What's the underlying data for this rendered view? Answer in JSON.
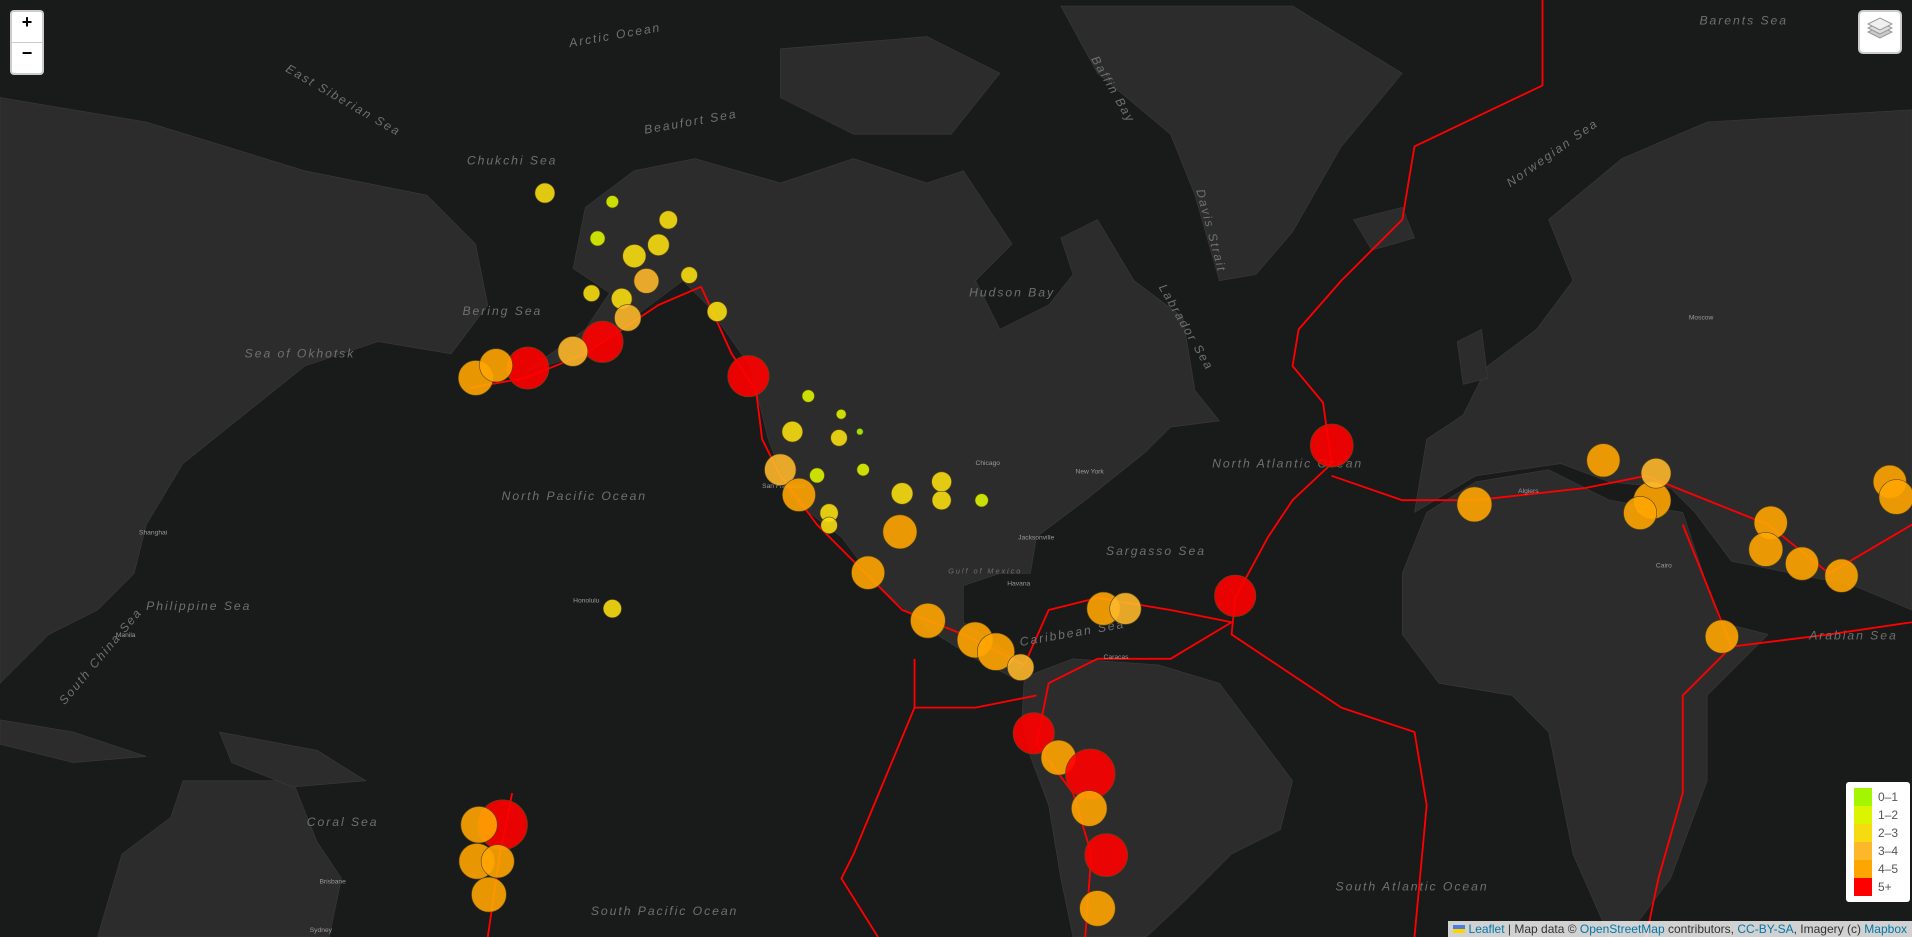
{
  "map_labels": [
    "Arctic Ocean",
    "Chukchi Sea",
    "Beaufort Sea",
    "East Siberian Sea",
    "Bering Sea",
    "Sea of Okhotsk",
    "North Pacific Ocean",
    "Philippine Sea",
    "South China Sea",
    "Coral Sea",
    "South Pacific Ocean",
    "Hudson Bay",
    "Baffin Bay",
    "Davis Strait",
    "Labrador Sea",
    "North Atlantic Ocean",
    "Sargasso Sea",
    "Caribbean Sea",
    "Gulf of Mexico",
    "South Atlantic Ocean",
    "Norwegian Sea",
    "Barents Sea",
    "Arabian Sea"
  ],
  "city_labels": [
    "Honolulu",
    "San Francisco",
    "Chicago",
    "New York",
    "Havana",
    "Caracas",
    "Algiers",
    "Cairo",
    "Shanghai",
    "Manila",
    "Brisbane",
    "Sydney",
    "Moscow",
    "Jacksonville"
  ],
  "controls": {
    "zoom_in": "+",
    "zoom_out": "−"
  },
  "legend": [
    {
      "label": "0–1",
      "color": "#a3f600"
    },
    {
      "label": "1–2",
      "color": "#dcf400"
    },
    {
      "label": "2–3",
      "color": "#f7db11"
    },
    {
      "label": "3–4",
      "color": "#fdb72a"
    },
    {
      "label": "4–5",
      "color": "#ffa500"
    },
    {
      "label": "5+",
      "color": "#ff0000"
    }
  ],
  "attribution": {
    "leaflet": "Leaflet",
    "map_data": "| Map data ©",
    "osm": "OpenStreetMap",
    "contributors": "contributors,",
    "license": "CC-BY-SA",
    "imagery": ", Imagery (c)",
    "mapbox": "Mapbox"
  },
  "earthquakes": [
    {
      "lon": -170.2,
      "lat": 52.7,
      "mag": 5.1
    },
    {
      "lon": -156.6,
      "lat": 55.5,
      "mag": 5.0
    },
    {
      "lon": -179.7,
      "lat": 51.6,
      "mag": 4.2
    },
    {
      "lon": -176.0,
      "lat": 53.0,
      "mag": 4.0
    },
    {
      "lon": -162.0,
      "lat": 54.5,
      "mag": 3.6
    },
    {
      "lon": -167.1,
      "lat": 68.1,
      "mag": 2.4
    },
    {
      "lon": -144.6,
      "lat": 66.2,
      "mag": 2.2
    },
    {
      "lon": -150.8,
      "lat": 63.4,
      "mag": 2.8
    },
    {
      "lon": -148.6,
      "lat": 61.3,
      "mag": 3.0
    },
    {
      "lon": -153.1,
      "lat": 59.7,
      "mag": 2.5
    },
    {
      "lon": -140.8,
      "lat": 61.8,
      "mag": 2.0
    },
    {
      "lon": -157.5,
      "lat": 64.8,
      "mag": 1.8
    },
    {
      "lon": -146.4,
      "lat": 64.3,
      "mag": 2.6
    },
    {
      "lon": -152.0,
      "lat": 57.9,
      "mag": 3.2
    },
    {
      "lon": -135.7,
      "lat": 58.5,
      "mag": 2.4
    },
    {
      "lon": -154.8,
      "lat": 67.5,
      "mag": 1.5
    },
    {
      "lon": -158.6,
      "lat": 60.2,
      "mag": 2.0
    },
    {
      "lon": -130.0,
      "lat": 51.8,
      "mag": 5.0
    },
    {
      "lon": -124.2,
      "lat": 40.0,
      "mag": 3.8
    },
    {
      "lon": -120.8,
      "lat": 36.4,
      "mag": 4.0
    },
    {
      "lon": -119.1,
      "lat": 49.5,
      "mag": 1.5
    },
    {
      "lon": -113.1,
      "lat": 47.3,
      "mag": 1.2
    },
    {
      "lon": -109.7,
      "lat": 45.1,
      "mag": 0.8
    },
    {
      "lon": -113.5,
      "lat": 44.3,
      "mag": 2.0
    },
    {
      "lon": -117.5,
      "lat": 39.2,
      "mag": 1.8
    },
    {
      "lon": -115.3,
      "lat": 33.7,
      "mag": 2.2
    },
    {
      "lon": -122.0,
      "lat": 45.1,
      "mag": 2.5
    },
    {
      "lon": -109.1,
      "lat": 40.0,
      "mag": 1.5
    },
    {
      "lon": -102.0,
      "lat": 36.6,
      "mag": 2.6
    },
    {
      "lon": -94.8,
      "lat": 35.6,
      "mag": 2.3
    },
    {
      "lon": -87.5,
      "lat": 35.6,
      "mag": 1.6
    },
    {
      "lon": -94.8,
      "lat": 38.3,
      "mag": 2.4
    },
    {
      "lon": -102.4,
      "lat": 30.8,
      "mag": 4.1
    },
    {
      "lon": -108.2,
      "lat": 24.2,
      "mag": 4.0
    },
    {
      "lon": -115.3,
      "lat": 31.8,
      "mag": 2.0
    },
    {
      "lon": -97.3,
      "lat": 16.0,
      "mag": 4.2
    },
    {
      "lon": -88.7,
      "lat": 12.6,
      "mag": 4.3
    },
    {
      "lon": -84.9,
      "lat": 10.5,
      "mag": 4.5
    },
    {
      "lon": -80.4,
      "lat": 7.7,
      "mag": 3.2
    },
    {
      "lon": -65.3,
      "lat": 18.1,
      "mag": 4.0
    },
    {
      "lon": -61.3,
      "lat": 18.1,
      "mag": 3.8
    },
    {
      "lon": -41.3,
      "lat": 20.3,
      "mag": 5.0
    },
    {
      "lon": -23.7,
      "lat": 43.3,
      "mag": 5.2
    },
    {
      "lon": -78.0,
      "lat": -4.3,
      "mag": 5.0
    },
    {
      "lon": -73.5,
      "lat": -8.7,
      "mag": 4.2
    },
    {
      "lon": -67.7,
      "lat": -11.6,
      "mag": 6.0
    },
    {
      "lon": -67.9,
      "lat": -17.7,
      "mag": 4.3
    },
    {
      "lon": -64.8,
      "lat": -25.6,
      "mag": 5.2
    },
    {
      "lon": -66.4,
      "lat": -34.0,
      "mag": 4.3
    },
    {
      "lon": -174.8,
      "lat": -20.5,
      "mag": 6.0
    },
    {
      "lon": -179.1,
      "lat": -20.5,
      "mag": 4.4
    },
    {
      "lon": -179.5,
      "lat": -26.6,
      "mag": 4.3
    },
    {
      "lon": -175.7,
      "lat": -26.6,
      "mag": 4.0
    },
    {
      "lon": -177.3,
      "lat": -31.9,
      "mag": 4.2
    },
    {
      "lon": 2.3,
      "lat": 35.0,
      "mag": 4.2
    },
    {
      "lon": 25.8,
      "lat": 41.3,
      "mag": 4.0
    },
    {
      "lon": 34.7,
      "lat": 35.6,
      "mag": 4.5
    },
    {
      "lon": 32.5,
      "lat": 33.7,
      "mag": 4.0
    },
    {
      "lon": 35.4,
      "lat": 39.5,
      "mag": 3.6
    },
    {
      "lon": 56.3,
      "lat": 32.2,
      "mag": 4.0
    },
    {
      "lon": 55.4,
      "lat": 28.0,
      "mag": 4.1
    },
    {
      "lon": 62.0,
      "lat": 25.7,
      "mag": 4.0
    },
    {
      "lon": 69.2,
      "lat": 23.7,
      "mag": 4.0
    },
    {
      "lon": 47.4,
      "lat": 13.2,
      "mag": 4.0
    },
    {
      "lon": 78.0,
      "lat": 38.3,
      "mag": 4.0
    },
    {
      "lon": 79.2,
      "lat": 36.1,
      "mag": 4.2
    },
    {
      "lon": -154.8,
      "lat": 18.1,
      "mag": 2.2
    }
  ]
}
